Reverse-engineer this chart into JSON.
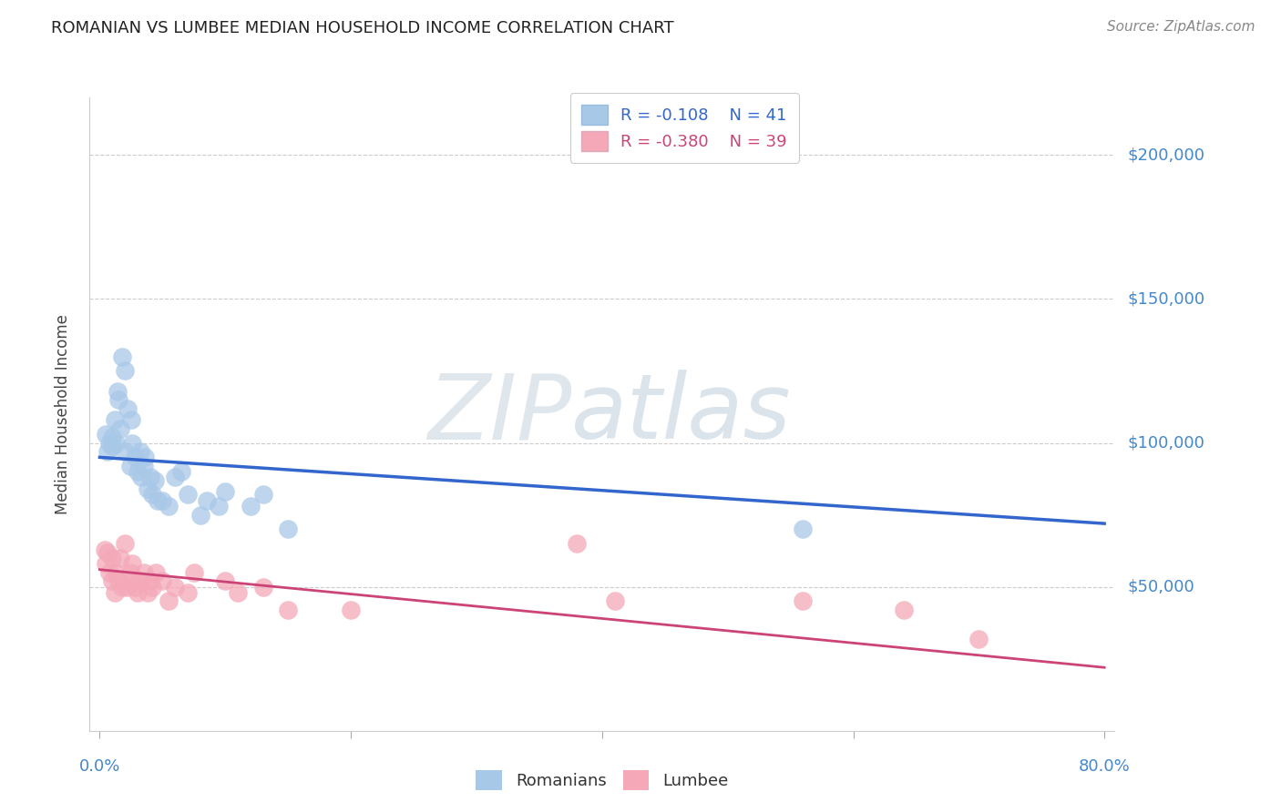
{
  "title": "ROMANIAN VS LUMBEE MEDIAN HOUSEHOLD INCOME CORRELATION CHART",
  "source": "Source: ZipAtlas.com",
  "ylabel": "Median Household Income",
  "romanian_R": -0.108,
  "romanian_N": 41,
  "lumbee_R": -0.38,
  "lumbee_N": 39,
  "romanian_color": "#a8c8e8",
  "lumbee_color": "#f4a8b8",
  "romanian_line_color": "#3366cc",
  "lumbee_line_color": "#cc4477",
  "axis_label_color": "#4488cc",
  "title_color": "#222222",
  "source_color": "#888888",
  "grid_color": "#cccccc",
  "watermark_zip_color": "#d8e4ee",
  "watermark_atlas_color": "#c8d8e8",
  "ytick_vals": [
    50000,
    100000,
    150000,
    200000
  ],
  "ytick_labels": [
    "$50,000",
    "$100,000",
    "$150,000",
    "$200,000"
  ],
  "ylim": [
    0,
    220000
  ],
  "xlim": [
    -0.008,
    0.808
  ],
  "xtick_positions": [
    0.0,
    0.2,
    0.4,
    0.6,
    0.8
  ],
  "romanian_x": [
    0.005,
    0.006,
    0.008,
    0.01,
    0.01,
    0.012,
    0.013,
    0.014,
    0.015,
    0.016,
    0.018,
    0.02,
    0.02,
    0.022,
    0.024,
    0.025,
    0.026,
    0.028,
    0.03,
    0.032,
    0.033,
    0.035,
    0.036,
    0.038,
    0.04,
    0.042,
    0.044,
    0.046,
    0.05,
    0.055,
    0.06,
    0.065,
    0.07,
    0.08,
    0.085,
    0.095,
    0.1,
    0.13,
    0.15,
    0.56,
    0.12
  ],
  "romanian_y": [
    103000,
    97000,
    100000,
    102000,
    99000,
    108000,
    100000,
    118000,
    115000,
    105000,
    130000,
    125000,
    97000,
    112000,
    92000,
    108000,
    100000,
    95000,
    90000,
    97000,
    88000,
    92000,
    95000,
    84000,
    88000,
    82000,
    87000,
    80000,
    80000,
    78000,
    88000,
    90000,
    82000,
    75000,
    80000,
    78000,
    83000,
    82000,
    70000,
    70000,
    78000
  ],
  "lumbee_x": [
    0.004,
    0.005,
    0.006,
    0.008,
    0.01,
    0.01,
    0.012,
    0.013,
    0.015,
    0.016,
    0.018,
    0.02,
    0.022,
    0.024,
    0.025,
    0.026,
    0.028,
    0.03,
    0.032,
    0.035,
    0.038,
    0.04,
    0.042,
    0.045,
    0.05,
    0.055,
    0.06,
    0.07,
    0.075,
    0.1,
    0.11,
    0.13,
    0.15,
    0.2,
    0.38,
    0.41,
    0.56,
    0.64,
    0.7
  ],
  "lumbee_y": [
    63000,
    58000,
    62000,
    55000,
    60000,
    52000,
    48000,
    55000,
    52000,
    60000,
    50000,
    65000,
    50000,
    55000,
    52000,
    58000,
    50000,
    48000,
    52000,
    55000,
    48000,
    52000,
    50000,
    55000,
    52000,
    45000,
    50000,
    48000,
    55000,
    52000,
    48000,
    50000,
    42000,
    42000,
    65000,
    45000,
    45000,
    42000,
    32000
  ]
}
